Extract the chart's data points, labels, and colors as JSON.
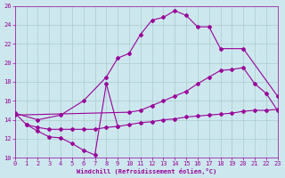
{
  "xlabel": "Windchill (Refroidissement éolien,°C)",
  "xlim": [
    0,
    23
  ],
  "ylim": [
    10,
    26
  ],
  "xticks": [
    0,
    1,
    2,
    3,
    4,
    5,
    6,
    7,
    8,
    9,
    10,
    11,
    12,
    13,
    14,
    15,
    16,
    17,
    18,
    19,
    20,
    21,
    22,
    23
  ],
  "yticks": [
    10,
    12,
    14,
    16,
    18,
    20,
    22,
    24,
    26
  ],
  "bg_color": "#cce8ee",
  "line_color": "#990099",
  "grid_color": "#aacccc",
  "lines": [
    {
      "x": [
        0,
        1,
        2,
        3,
        4,
        5,
        6,
        7,
        8,
        9
      ],
      "y": [
        14.7,
        13.5,
        12.8,
        12.2,
        12.1,
        11.5,
        10.8,
        10.3,
        17.8,
        13.3
      ]
    },
    {
      "x": [
        0,
        2,
        4,
        6,
        8,
        9,
        10,
        11,
        12,
        13,
        14,
        15,
        16,
        17,
        18,
        20,
        23
      ],
      "y": [
        14.7,
        14.0,
        14.5,
        16.0,
        18.5,
        20.5,
        21.0,
        23.0,
        24.5,
        24.8,
        25.5,
        25.0,
        23.8,
        23.8,
        21.5,
        21.5,
        16.5
      ]
    },
    {
      "x": [
        0,
        10,
        11,
        12,
        13,
        14,
        15,
        16,
        17,
        18,
        19,
        20,
        21,
        22,
        23
      ],
      "y": [
        14.5,
        14.8,
        15.0,
        15.5,
        16.0,
        16.5,
        17.0,
        17.8,
        18.5,
        19.2,
        19.3,
        19.5,
        17.8,
        16.8,
        15.0
      ]
    },
    {
      "x": [
        1,
        2,
        3,
        4,
        5,
        6,
        7,
        8,
        9,
        10,
        11,
        12,
        13,
        14,
        15,
        16,
        17,
        18,
        19,
        20,
        21,
        22,
        23
      ],
      "y": [
        13.5,
        13.2,
        13.0,
        13.0,
        13.0,
        13.0,
        13.0,
        13.2,
        13.3,
        13.5,
        13.7,
        13.8,
        14.0,
        14.1,
        14.3,
        14.4,
        14.5,
        14.6,
        14.7,
        14.9,
        15.0,
        15.0,
        15.1
      ]
    }
  ]
}
